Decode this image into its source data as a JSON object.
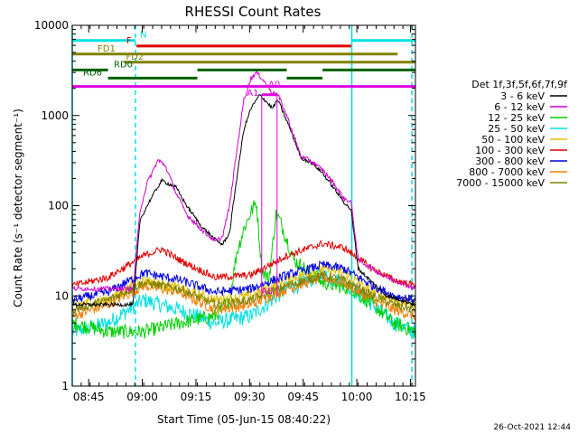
{
  "chart_data": {
    "type": "line",
    "title": "RHESSI Count Rates",
    "xlabel": "Start Time (05-Jun-15 08:40:22)",
    "ylabel": "Count Rate (s⁻¹ detector segment⁻¹)",
    "y_scale": "log",
    "ylim": [
      1,
      10000
    ],
    "xlim_minutes": [
      0,
      96
    ],
    "x_tick_labels": [
      "08:45",
      "09:00",
      "09:15",
      "09:30",
      "09:45",
      "10:00",
      "10:15"
    ],
    "x_tick_minutes": [
      4.6,
      19.6,
      34.6,
      49.6,
      64.6,
      79.6,
      94.6
    ],
    "y_tick_labels": [
      "1",
      "10",
      "100",
      "1000",
      "10000"
    ],
    "y_tick_values": [
      1,
      10,
      100,
      1000,
      10000
    ],
    "legend_title": "Det 1f,3f,5f,6f,7f,9f",
    "legend_position": "right",
    "x_unit": "minutes since 08:40:22",
    "series": [
      {
        "name": "3 - 6 keV",
        "color": "#000000",
        "x": [
          0,
          17,
          19,
          22,
          25,
          29,
          32,
          36,
          40,
          42,
          44,
          46,
          48,
          50,
          52.5,
          56,
          57.5,
          61,
          64,
          67,
          70,
          73,
          76,
          78,
          80,
          84,
          88,
          92,
          96
        ],
        "y": [
          8,
          8,
          70,
          120,
          190,
          160,
          100,
          60,
          42,
          37,
          50,
          200,
          700,
          1200,
          1700,
          1200,
          1500,
          700,
          340,
          300,
          230,
          160,
          110,
          90,
          20,
          14,
          10,
          9,
          8
        ]
      },
      {
        "name": "6 - 12 keV",
        "color": "#d000d0",
        "x": [
          0,
          17,
          19,
          21,
          24,
          26,
          29,
          32,
          36,
          40,
          42,
          44,
          46,
          48,
          50,
          51.5,
          53,
          56,
          57.5,
          60,
          64,
          67,
          70,
          73,
          76,
          78,
          80,
          84,
          88,
          92,
          96
        ],
        "y": [
          12,
          12,
          90,
          180,
          320,
          280,
          140,
          80,
          55,
          40,
          45,
          100,
          400,
          1500,
          2600,
          3000,
          2600,
          1800,
          1700,
          1000,
          350,
          310,
          250,
          180,
          120,
          110,
          25,
          20,
          16,
          14,
          12
        ]
      },
      {
        "name": "12 - 25 keV",
        "color": "#00d000",
        "x": [
          0,
          10,
          20,
          30,
          40,
          44,
          46,
          48,
          50,
          51.5,
          53,
          55,
          57,
          58,
          62,
          70,
          78,
          84,
          90,
          96
        ],
        "y": [
          5,
          4,
          4,
          5,
          6,
          9,
          30,
          55,
          85,
          110,
          20,
          15,
          80,
          70,
          25,
          14,
          12,
          8,
          5,
          4
        ]
      },
      {
        "name": "25 - 50 keV",
        "color": "#00e0e0",
        "x": [
          0,
          10,
          20,
          30,
          40,
          50,
          60,
          70,
          76,
          84,
          90,
          96
        ],
        "y": [
          4,
          5,
          9,
          7,
          5,
          6,
          12,
          17,
          14,
          8,
          5,
          4
        ]
      },
      {
        "name": "50 - 100 keV",
        "color": "#e0c000",
        "x": [
          0,
          10,
          20,
          30,
          40,
          50,
          60,
          70,
          76,
          84,
          90,
          96
        ],
        "y": [
          8,
          9,
          15,
          12,
          9,
          10,
          15,
          20,
          18,
          11,
          9,
          8
        ]
      },
      {
        "name": "100 - 300 keV",
        "color": "#e00000",
        "x": [
          0,
          10,
          20,
          25,
          30,
          40,
          50,
          60,
          70,
          76,
          84,
          90,
          96
        ],
        "y": [
          13,
          16,
          28,
          33,
          25,
          16,
          17,
          28,
          38,
          34,
          20,
          15,
          13
        ]
      },
      {
        "name": "300 - 800 keV",
        "color": "#0000e0",
        "x": [
          0,
          10,
          20,
          30,
          40,
          50,
          60,
          70,
          76,
          84,
          90,
          96
        ],
        "y": [
          9,
          11,
          18,
          15,
          11,
          12,
          17,
          22,
          20,
          13,
          10,
          9
        ]
      },
      {
        "name": "800 - 7000 keV",
        "color": "#f08000",
        "x": [
          0,
          10,
          20,
          30,
          40,
          50,
          60,
          70,
          76,
          84,
          90,
          96
        ],
        "y": [
          6,
          8,
          13,
          11,
          7,
          8,
          12,
          16,
          14,
          9,
          7,
          6
        ]
      },
      {
        "name": "7000 - 15000 keV",
        "color": "#808000",
        "x": [
          0,
          10,
          20,
          30,
          40,
          50,
          60,
          70,
          76,
          84,
          90,
          96
        ],
        "y": [
          7,
          9,
          14,
          12,
          8,
          9,
          13,
          17,
          15,
          10,
          8,
          7
        ]
      }
    ],
    "vertical_markers": [
      {
        "x": 0,
        "style": "solid",
        "color": "#00e0e0"
      },
      {
        "x": 17.7,
        "style": "dashed",
        "color": "#00e0e0"
      },
      {
        "x": 78.2,
        "style": "solid",
        "color": "#00e0e0"
      },
      {
        "x": 95,
        "style": "dashed",
        "color": "#00e0e0"
      }
    ],
    "state_bars": [
      {
        "label": "N",
        "color": "#00e0e0",
        "value": 6800,
        "segments": [
          [
            0,
            17.7
          ],
          [
            78.2,
            96
          ]
        ]
      },
      {
        "label": "F",
        "color": "#e00000",
        "value": 5900,
        "segments": [
          [
            18,
            78
          ]
        ]
      },
      {
        "label": "FD1",
        "color": "#808000",
        "value": 4800,
        "segments": [
          [
            0,
            91
          ]
        ]
      },
      {
        "label": "FD2",
        "color": "#808000",
        "value": 3900,
        "segments": [
          [
            14.5,
            96
          ]
        ]
      },
      {
        "label": "RD0",
        "color": "#006000",
        "value": 3200,
        "segments": [
          [
            0,
            10
          ],
          [
            35,
            60
          ],
          [
            70,
            96
          ]
        ]
      },
      {
        "label": "RD6",
        "color": "#006000",
        "value": 2600,
        "segments": [
          [
            10,
            35
          ],
          [
            60,
            70
          ]
        ]
      },
      {
        "label": "A1",
        "color": "#e000e0",
        "value": 2100,
        "segments": [
          [
            0,
            96
          ]
        ]
      },
      {
        "label": "A0",
        "color": "#e000e0",
        "value": 1700,
        "segments": [
          [
            53,
            57.3
          ]
        ]
      }
    ],
    "annotations": [
      {
        "text": "A1",
        "x": 50.5,
        "y": 1650
      },
      {
        "text": "A0",
        "x": 56.5,
        "y": 2050
      },
      {
        "text": "A0",
        "x": 54.5,
        "y": 10.5
      }
    ],
    "footer_text": "26-Oct-2021 12:44"
  }
}
